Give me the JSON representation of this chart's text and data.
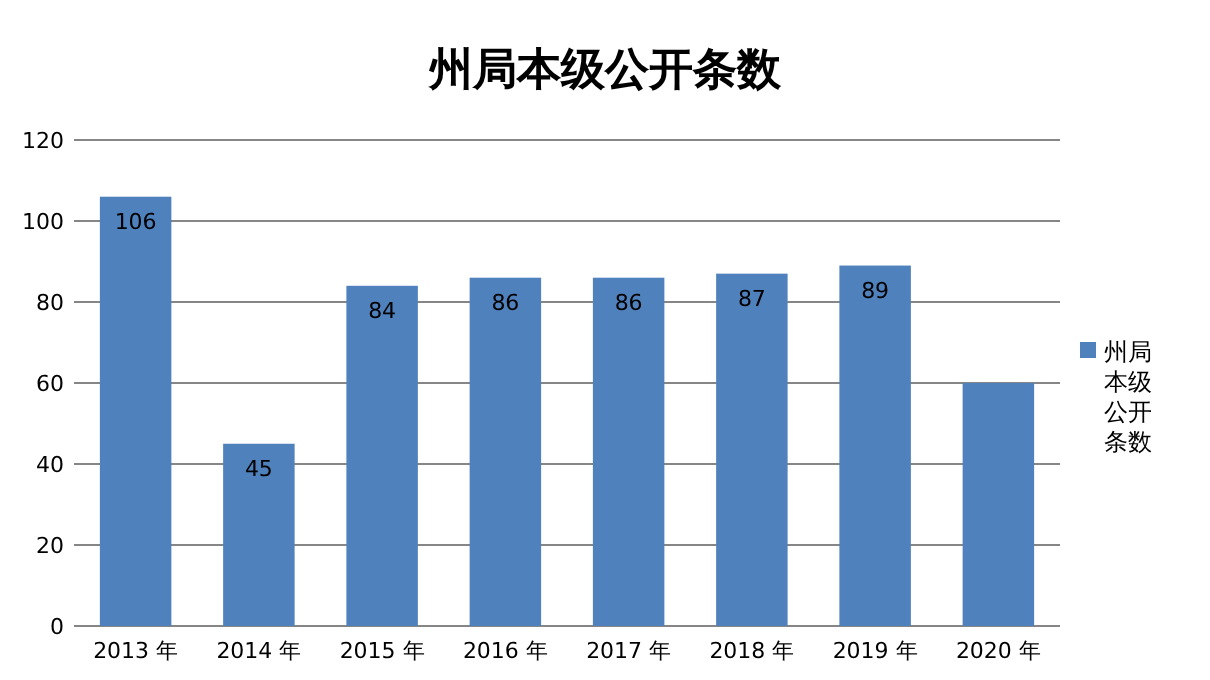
{
  "chart_data": {
    "type": "bar",
    "title": "州局本级公开条数",
    "categories": [
      "2013 年",
      "2014 年",
      "2015 年",
      "2016 年",
      "2017 年",
      "2018 年",
      "2019 年",
      "2020 年"
    ],
    "series": [
      {
        "name": "州局本级公开条数",
        "color": "#4f81bd",
        "values": [
          106,
          45,
          84,
          86,
          86,
          87,
          89,
          60
        ],
        "value_labels": [
          "106",
          "45",
          "84",
          "86",
          "86",
          "87",
          "89",
          null
        ]
      }
    ],
    "ylim": [
      0,
      120
    ],
    "yticks": [
      0,
      20,
      40,
      60,
      80,
      100,
      120
    ],
    "grid": "y",
    "legend": "right"
  }
}
